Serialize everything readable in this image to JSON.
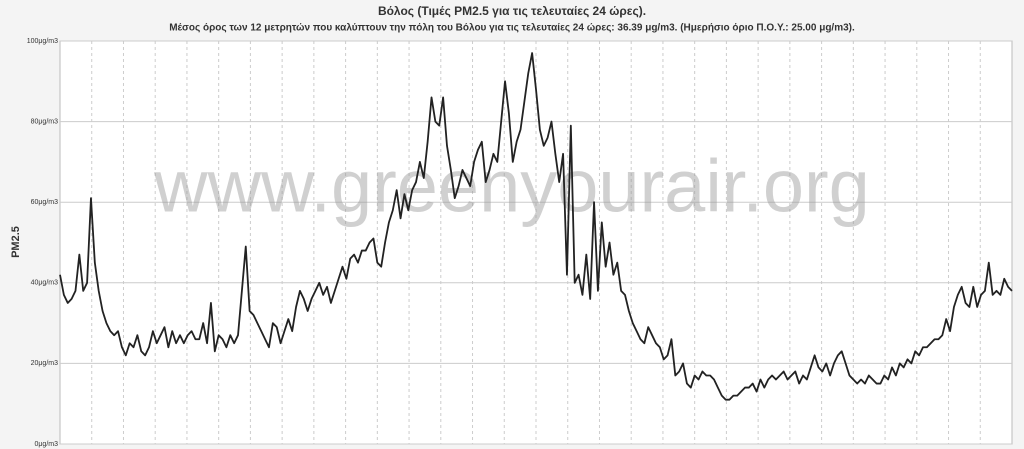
{
  "chart_data": {
    "type": "line",
    "title": "Βόλος (Τιμές PM2.5 για τις τελευταίες 24 ώρες).",
    "subtitle": "Μέσος όρος των 12 μετρητών που καλύπτουν την πόλη του Βόλου για τις τελευταίες 24 ώρες: 36.39 μg/m3. (Ημερήσιο όριο Π.Ο.Υ.: 25.00 μg/m3).",
    "y_label": "PM2.5",
    "watermark": "www.greenyourair.org",
    "color": "#222222",
    "grid": true,
    "ylim": [
      0,
      100
    ],
    "yticks": [
      {
        "value": 0,
        "label": "0μg/m3"
      },
      {
        "value": 20,
        "label": "20μg/m3"
      },
      {
        "value": 40,
        "label": "40μg/m3"
      },
      {
        "value": 60,
        "label": "60μg/m3"
      },
      {
        "value": 80,
        "label": "80μg/m3"
      },
      {
        "value": 100,
        "label": "100μg/m3"
      }
    ],
    "values": [
      42,
      37,
      35,
      36,
      38,
      47,
      38,
      40,
      61,
      45,
      38,
      33,
      30,
      28,
      27,
      28,
      24,
      22,
      25,
      24,
      27,
      23,
      22,
      24,
      28,
      25,
      27,
      29,
      24,
      28,
      25,
      27,
      25,
      27,
      28,
      26,
      26,
      30,
      25,
      35,
      23,
      27,
      26,
      24,
      27,
      25,
      27,
      38,
      49,
      33,
      32,
      30,
      28,
      26,
      24,
      30,
      29,
      25,
      28,
      31,
      28,
      34,
      38,
      36,
      33,
      36,
      38,
      40,
      37,
      39,
      35,
      38,
      41,
      44,
      41,
      46,
      47,
      45,
      48,
      48,
      50,
      51,
      45,
      44,
      50,
      55,
      58,
      63,
      56,
      62,
      58,
      63,
      65,
      70,
      66,
      75,
      86,
      80,
      79,
      86,
      74,
      68,
      61,
      64,
      68,
      66,
      64,
      70,
      73,
      75,
      65,
      68,
      72,
      70,
      80,
      90,
      82,
      70,
      75,
      78,
      85,
      92,
      97,
      88,
      78,
      74,
      76,
      80,
      72,
      65,
      72,
      42,
      79,
      40,
      42,
      37,
      47,
      36,
      60,
      38,
      55,
      44,
      50,
      42,
      45,
      38,
      37,
      33,
      30,
      28,
      26,
      25,
      29,
      27,
      25,
      24,
      21,
      22,
      26,
      17,
      18,
      20,
      15,
      14,
      17,
      16,
      18,
      17,
      17,
      16,
      14,
      12,
      11,
      11,
      12,
      12,
      13,
      14,
      14,
      15,
      13,
      16,
      14,
      16,
      17,
      16,
      17,
      18,
      16,
      17,
      18,
      15,
      17,
      16,
      19,
      22,
      19,
      18,
      20,
      17,
      20,
      22,
      23,
      20,
      17,
      16,
      15,
      16,
      15,
      17,
      16,
      15,
      15,
      17,
      16,
      19,
      17,
      20,
      19,
      21,
      20,
      23,
      22,
      24,
      24,
      25,
      26,
      26,
      27,
      31,
      28,
      34,
      37,
      39,
      35,
      34,
      39,
      34,
      37,
      38,
      45,
      37,
      38,
      37,
      41,
      39,
      38
    ]
  }
}
